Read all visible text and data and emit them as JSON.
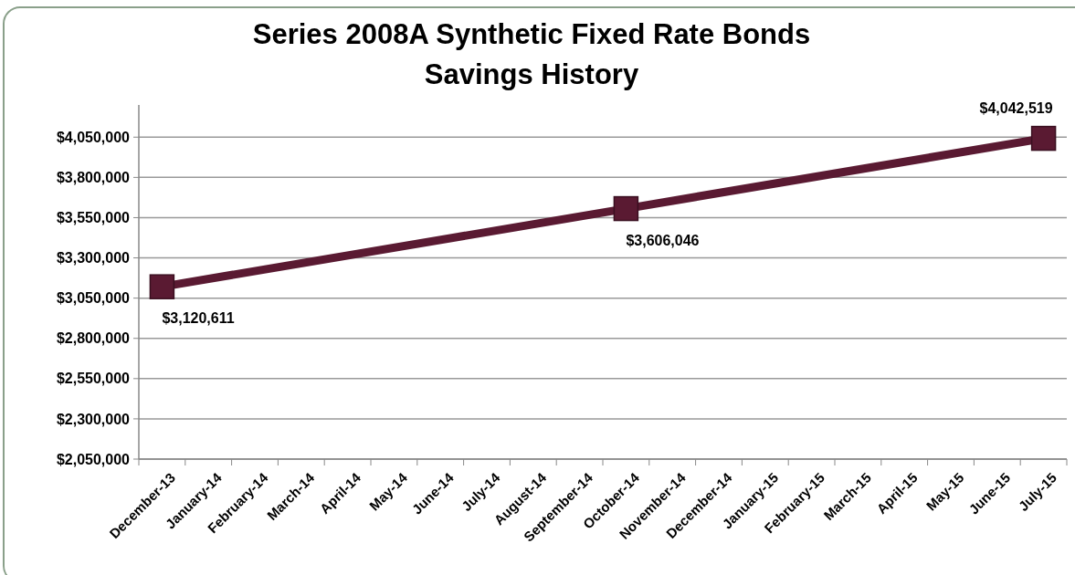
{
  "chart_data": {
    "type": "line",
    "title": "Series 2008A Synthetic Fixed Rate Bonds",
    "subtitle": "Savings History",
    "categories": [
      "December-13",
      "January-14",
      "February-14",
      "March-14",
      "April-14",
      "May-14",
      "June-14",
      "July-14",
      "August-14",
      "September-14",
      "October-14",
      "November-14",
      "December-14",
      "January-15",
      "February-15",
      "March-15",
      "April-15",
      "May-15",
      "June-15",
      "July-15"
    ],
    "series": [
      {
        "color": "#5a1a32",
        "values": [
          3120611,
          null,
          null,
          null,
          null,
          null,
          null,
          null,
          null,
          null,
          3606046,
          null,
          null,
          null,
          null,
          null,
          null,
          null,
          null,
          4042519
        ],
        "value_labels": [
          "$3,120,611",
          null,
          null,
          null,
          null,
          null,
          null,
          null,
          null,
          null,
          "$3,606,046",
          null,
          null,
          null,
          null,
          null,
          null,
          null,
          null,
          "$4,042,519"
        ]
      }
    ],
    "ylim": [
      2050000,
      4250000
    ],
    "yticks": [
      {
        "value": 2050000,
        "label": "$2,050,000"
      },
      {
        "value": 2300000,
        "label": "$2,300,000"
      },
      {
        "value": 2550000,
        "label": "$2,550,000"
      },
      {
        "value": 2800000,
        "label": "$2,800,000"
      },
      {
        "value": 3050000,
        "label": "$3,050,000"
      },
      {
        "value": 3300000,
        "label": "$3,300,000"
      },
      {
        "value": 3550000,
        "label": "$3,550,000"
      },
      {
        "value": 3800000,
        "label": "$3,800,000"
      },
      {
        "value": 4050000,
        "label": "$4,050,000"
      }
    ],
    "grid": "y",
    "marker": "square",
    "line_style": "solid"
  }
}
